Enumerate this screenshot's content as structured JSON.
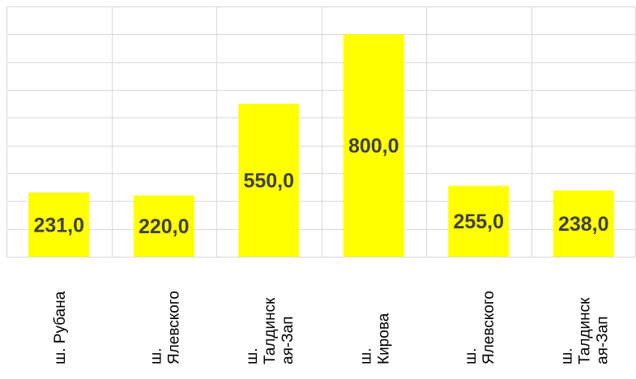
{
  "chart_data": {
    "type": "bar",
    "categories": [
      [
        "ш. Рубана"
      ],
      [
        "ш.",
        "Ялевского"
      ],
      [
        "ш.",
        "Талдинск",
        "ая-Зап"
      ],
      [
        "ш.",
        "Кирова"
      ],
      [
        "ш.",
        "Ялевского"
      ],
      [
        "ш.",
        "Талдинск",
        "ая-Зап"
      ]
    ],
    "values": [
      231.0,
      220.0,
      550.0,
      800.0,
      255.0,
      238.0
    ],
    "value_labels": [
      "231,0",
      "220,0",
      "550,0",
      "800,0",
      "255,0",
      "238,0"
    ],
    "title": "",
    "xlabel": "",
    "ylabel": "",
    "ylim": [
      0,
      900
    ],
    "grid": true,
    "legend": "none",
    "colors": {
      "bar": "#ffff00",
      "label": "#404040",
      "grid": "#d9d9d9"
    }
  }
}
